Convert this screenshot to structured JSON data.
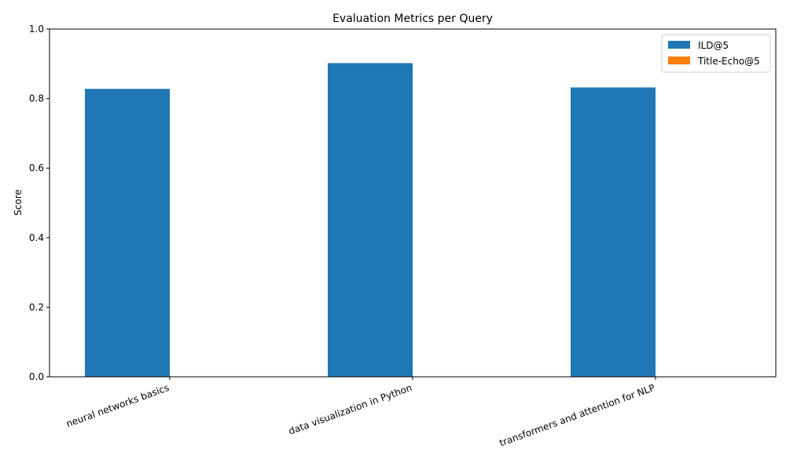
{
  "chart_data": {
    "type": "bar",
    "title": "Evaluation Metrics per Query",
    "xlabel": "",
    "ylabel": "Score",
    "ylim": [
      0,
      1.0
    ],
    "yticks": [
      "0.0",
      "0.2",
      "0.4",
      "0.6",
      "0.8",
      "1.0"
    ],
    "categories": [
      "neural networks basics",
      "data visualization in Python",
      "transformers and attention for NLP"
    ],
    "series": [
      {
        "name": "ILD@5",
        "values": [
          0.828,
          0.902,
          0.832
        ],
        "color": "#1f77b4"
      },
      {
        "name": "Title-Echo@5",
        "values": [
          0.0,
          0.0,
          0.0
        ],
        "color": "#ff7f0e"
      }
    ],
    "legend_position": "top-right",
    "grid": false
  }
}
